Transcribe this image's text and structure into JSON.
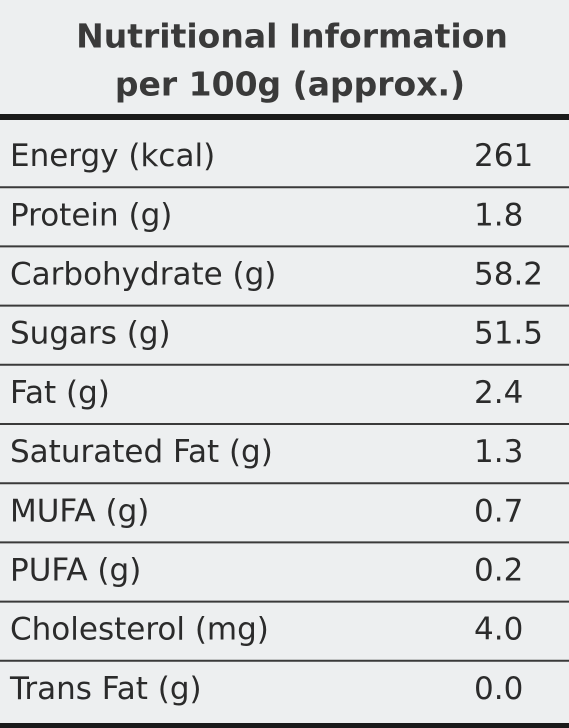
{
  "header": {
    "title": "Nutritional Information",
    "subtitle": "per 100g (approx.)"
  },
  "table": {
    "rows": [
      [
        "Energy (kcal)",
        "261"
      ],
      [
        "Protein (g)",
        "1.8"
      ],
      [
        "Carbohydrate (g)",
        "58.2"
      ],
      [
        "Sugars (g)",
        "51.5"
      ],
      [
        "Fat (g)",
        "2.4"
      ],
      [
        "Saturated Fat (g)",
        "1.3"
      ],
      [
        "MUFA (g)",
        "0.7"
      ],
      [
        "PUFA (g)",
        "0.2"
      ],
      [
        "Cholesterol (mg)",
        "4.0"
      ],
      [
        "Trans Fat (g)",
        "0.0"
      ]
    ]
  }
}
